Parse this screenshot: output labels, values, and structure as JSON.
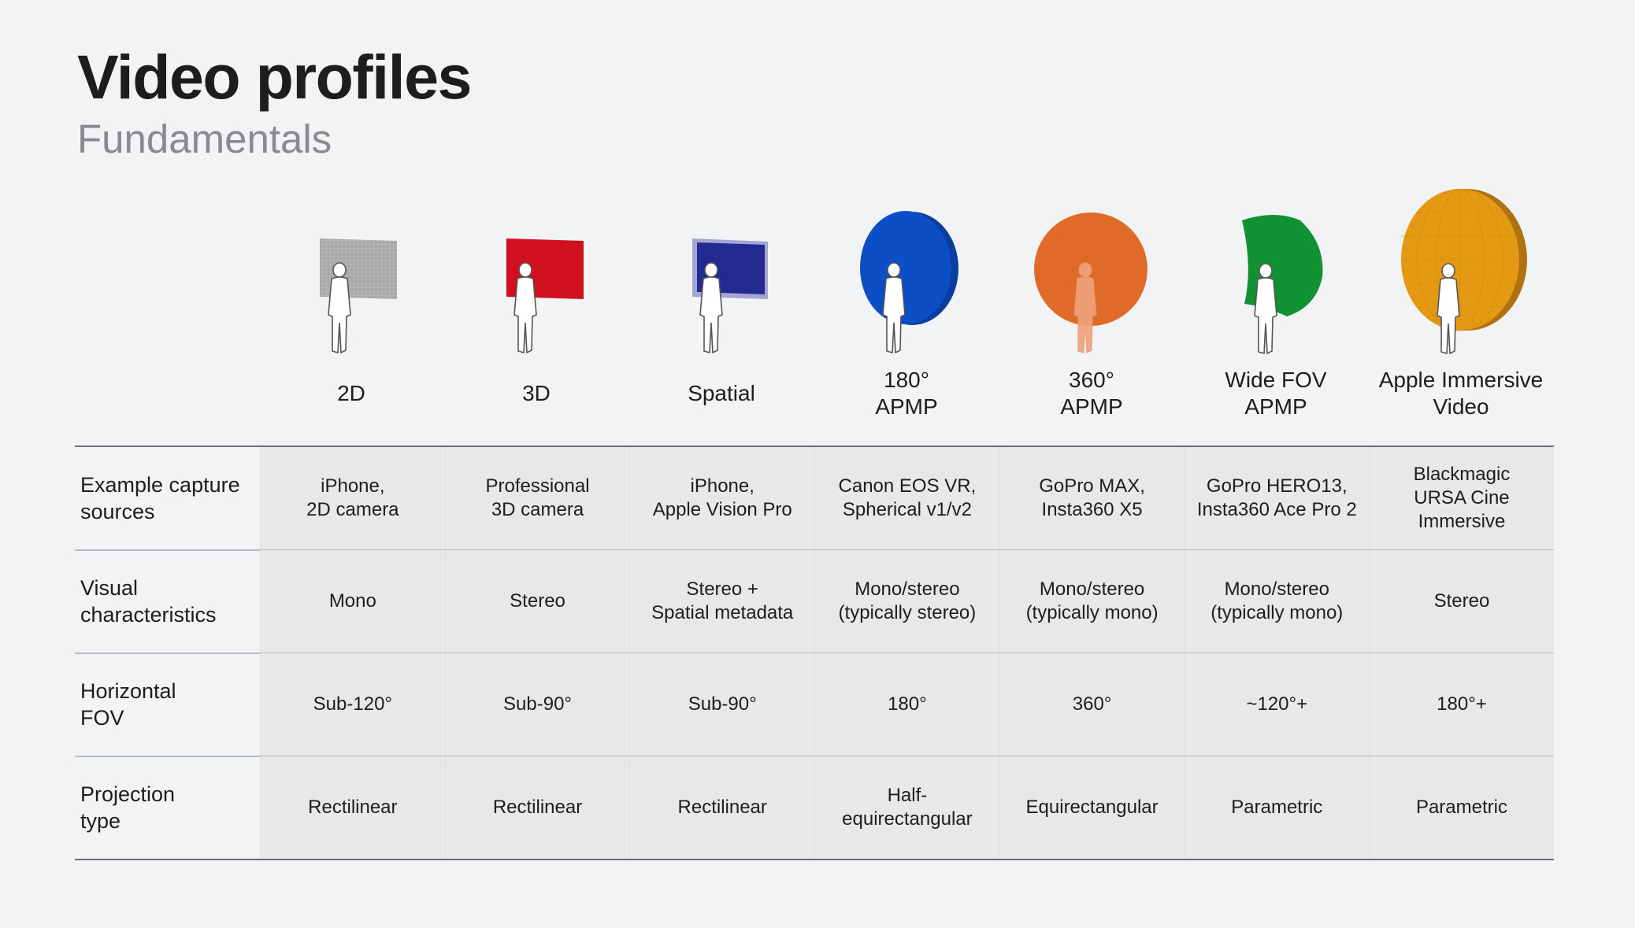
{
  "title": "Video profiles",
  "subtitle": "Fundamentals",
  "profiles": [
    {
      "label": "2D",
      "color": "#a9a9ab",
      "icon": "flat-gray-screen-icon"
    },
    {
      "label": "3D",
      "color": "#d0101e",
      "icon": "flat-red-screen-icon"
    },
    {
      "label": "Spatial",
      "color": "#232a8f",
      "icon": "flat-blue-screen-icon"
    },
    {
      "label": "180°\nAPMP",
      "color": "#0b4ec6",
      "icon": "half-sphere-blue-icon"
    },
    {
      "label": "360°\nAPMP",
      "color": "#e06a28",
      "icon": "full-sphere-orange-icon"
    },
    {
      "label": "Wide FOV\nAPMP",
      "color": "#109233",
      "icon": "curved-green-screen-icon"
    },
    {
      "label": "Apple Immersive\nVideo",
      "color": "#e39a12",
      "icon": "dome-yellow-icon"
    }
  ],
  "table": {
    "rows": [
      {
        "header": "Example capture\nsources",
        "cells": [
          "iPhone,\n2D camera",
          "Professional\n3D camera",
          "iPhone,\nApple Vision Pro",
          "Canon EOS VR,\nSpherical v1/v2",
          "GoPro MAX,\nInsta360 X5",
          "GoPro HERO13,\nInsta360 Ace Pro 2",
          "Blackmagic\nURSA Cine\nImmersive"
        ]
      },
      {
        "header": "Visual\ncharacteristics",
        "cells": [
          "Mono",
          "Stereo",
          "Stereo +\nSpatial metadata",
          "Mono/stereo\n(typically stereo)",
          "Mono/stereo\n(typically mono)",
          "Mono/stereo\n(typically mono)",
          "Stereo"
        ]
      },
      {
        "header": "Horizontal\nFOV",
        "cells": [
          "Sub-120°",
          "Sub-90°",
          "Sub-90°",
          "180°",
          "360°",
          "~120°+",
          "180°+"
        ]
      },
      {
        "header": "Projection\ntype",
        "cells": [
          "Rectilinear",
          "Rectilinear",
          "Rectilinear",
          "Half-\nequirectangular",
          "Equirectangular",
          "Parametric",
          "Parametric"
        ]
      }
    ]
  }
}
